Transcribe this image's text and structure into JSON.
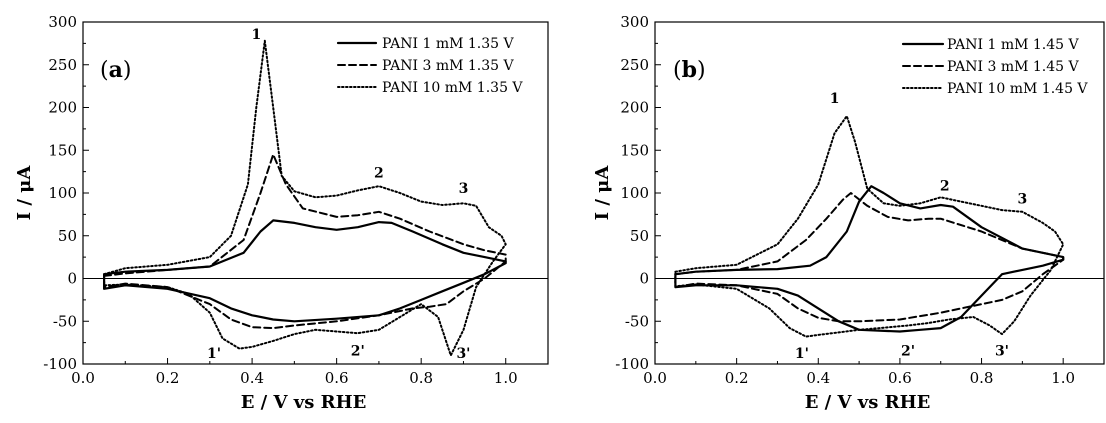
{
  "chart_data": [
    {
      "type": "line",
      "panel_label": "a",
      "xlabel": "E / V vs RHE",
      "ylabel": "I / μA",
      "xlim": [
        0.0,
        1.1
      ],
      "ylim": [
        -100,
        300
      ],
      "xticks": [
        0.0,
        0.2,
        0.4,
        0.6,
        0.8,
        1.0
      ],
      "yticks": [
        -100,
        -50,
        0,
        50,
        100,
        150,
        200,
        250,
        300
      ],
      "xtick_labels": [
        "0.0",
        "0.2",
        "0.4",
        "0.6",
        "0.8",
        "1.0"
      ],
      "ytick_labels": [
        "-100",
        "-50",
        "0",
        "50",
        "100",
        "150",
        "200",
        "250",
        "300"
      ],
      "zero_line": true,
      "grid": false,
      "legend_position": "top-right",
      "series": [
        {
          "name": "PANI 1 mM 1.35 V",
          "style": "solid",
          "points": [
            [
              0.05,
              5
            ],
            [
              0.1,
              8
            ],
            [
              0.2,
              10
            ],
            [
              0.3,
              14
            ],
            [
              0.38,
              30
            ],
            [
              0.42,
              55
            ],
            [
              0.45,
              68
            ],
            [
              0.5,
              65
            ],
            [
              0.55,
              60
            ],
            [
              0.6,
              57
            ],
            [
              0.65,
              60
            ],
            [
              0.7,
              66
            ],
            [
              0.73,
              65
            ],
            [
              0.78,
              55
            ],
            [
              0.85,
              40
            ],
            [
              0.9,
              30
            ],
            [
              0.95,
              25
            ],
            [
              1.0,
              20
            ],
            [
              1.0,
              18
            ],
            [
              0.95,
              5
            ],
            [
              0.9,
              -5
            ],
            [
              0.85,
              -15
            ],
            [
              0.8,
              -25
            ],
            [
              0.75,
              -35
            ],
            [
              0.7,
              -43
            ],
            [
              0.6,
              -47
            ],
            [
              0.5,
              -50
            ],
            [
              0.45,
              -48
            ],
            [
              0.4,
              -43
            ],
            [
              0.35,
              -35
            ],
            [
              0.3,
              -23
            ],
            [
              0.2,
              -12
            ],
            [
              0.1,
              -8
            ],
            [
              0.05,
              -12
            ],
            [
              0.05,
              5
            ]
          ]
        },
        {
          "name": "PANI 3 mM 1.35 V",
          "style": "dashed",
          "points": [
            [
              0.05,
              3
            ],
            [
              0.1,
              6
            ],
            [
              0.2,
              10
            ],
            [
              0.3,
              14
            ],
            [
              0.38,
              45
            ],
            [
              0.42,
              100
            ],
            [
              0.45,
              145
            ],
            [
              0.48,
              110
            ],
            [
              0.52,
              82
            ],
            [
              0.6,
              72
            ],
            [
              0.65,
              74
            ],
            [
              0.7,
              78
            ],
            [
              0.75,
              70
            ],
            [
              0.82,
              55
            ],
            [
              0.9,
              40
            ],
            [
              0.95,
              33
            ],
            [
              1.0,
              28
            ],
            [
              1.0,
              20
            ],
            [
              0.95,
              0
            ],
            [
              0.9,
              -15
            ],
            [
              0.86,
              -30
            ],
            [
              0.82,
              -33
            ],
            [
              0.78,
              -35
            ],
            [
              0.7,
              -43
            ],
            [
              0.6,
              -50
            ],
            [
              0.5,
              -55
            ],
            [
              0.45,
              -58
            ],
            [
              0.4,
              -57
            ],
            [
              0.35,
              -48
            ],
            [
              0.3,
              -30
            ],
            [
              0.2,
              -10
            ],
            [
              0.1,
              -6
            ],
            [
              0.05,
              -10
            ],
            [
              0.05,
              3
            ]
          ]
        },
        {
          "name": "PANI 10 mM 1.35 V",
          "style": "dotted",
          "points": [
            [
              0.05,
              5
            ],
            [
              0.1,
              12
            ],
            [
              0.2,
              16
            ],
            [
              0.3,
              25
            ],
            [
              0.35,
              50
            ],
            [
              0.39,
              110
            ],
            [
              0.41,
              200
            ],
            [
              0.43,
              278
            ],
            [
              0.45,
              200
            ],
            [
              0.47,
              120
            ],
            [
              0.5,
              102
            ],
            [
              0.55,
              95
            ],
            [
              0.6,
              97
            ],
            [
              0.65,
              103
            ],
            [
              0.7,
              108
            ],
            [
              0.75,
              100
            ],
            [
              0.8,
              90
            ],
            [
              0.85,
              86
            ],
            [
              0.9,
              88
            ],
            [
              0.93,
              85
            ],
            [
              0.96,
              60
            ],
            [
              0.99,
              50
            ],
            [
              1.0,
              40
            ],
            [
              0.97,
              20
            ],
            [
              0.93,
              -10
            ],
            [
              0.9,
              -60
            ],
            [
              0.87,
              -90
            ],
            [
              0.84,
              -45
            ],
            [
              0.8,
              -30
            ],
            [
              0.75,
              -45
            ],
            [
              0.7,
              -60
            ],
            [
              0.65,
              -64
            ],
            [
              0.6,
              -62
            ],
            [
              0.55,
              -60
            ],
            [
              0.5,
              -65
            ],
            [
              0.45,
              -73
            ],
            [
              0.4,
              -80
            ],
            [
              0.37,
              -82
            ],
            [
              0.33,
              -70
            ],
            [
              0.3,
              -40
            ],
            [
              0.25,
              -18
            ],
            [
              0.2,
              -10
            ],
            [
              0.1,
              -7
            ],
            [
              0.05,
              -8
            ],
            [
              0.05,
              5
            ]
          ]
        }
      ],
      "annotations": [
        {
          "text": "1",
          "x": 0.41,
          "y": 280
        },
        {
          "text": "2",
          "x": 0.7,
          "y": 118
        },
        {
          "text": "3",
          "x": 0.9,
          "y": 100
        },
        {
          "text": "1'",
          "x": 0.31,
          "y": -93
        },
        {
          "text": "2'",
          "x": 0.65,
          "y": -90
        },
        {
          "text": "3'",
          "x": 0.9,
          "y": -93
        }
      ]
    },
    {
      "type": "line",
      "panel_label": "b",
      "xlabel": "E / V vs RHE",
      "ylabel": "I / μA",
      "xlim": [
        0.0,
        1.1
      ],
      "ylim": [
        -100,
        300
      ],
      "xticks": [
        0.0,
        0.2,
        0.4,
        0.6,
        0.8,
        1.0
      ],
      "yticks": [
        -100,
        -50,
        0,
        50,
        100,
        150,
        200,
        250,
        300
      ],
      "xtick_labels": [
        "0.0",
        "0.2",
        "0.4",
        "0.6",
        "0.8",
        "1.0"
      ],
      "ytick_labels": [
        "-100",
        "-50",
        "0",
        "50",
        "100",
        "150",
        "200",
        "250",
        "300"
      ],
      "zero_line": true,
      "grid": false,
      "legend_position": "top-right",
      "series": [
        {
          "name": "PANI 1 mM 1.45 V",
          "style": "solid",
          "points": [
            [
              0.05,
              5
            ],
            [
              0.1,
              8
            ],
            [
              0.2,
              10
            ],
            [
              0.3,
              11
            ],
            [
              0.38,
              15
            ],
            [
              0.42,
              25
            ],
            [
              0.47,
              55
            ],
            [
              0.5,
              90
            ],
            [
              0.53,
              108
            ],
            [
              0.56,
              100
            ],
            [
              0.6,
              88
            ],
            [
              0.65,
              82
            ],
            [
              0.7,
              86
            ],
            [
              0.73,
              84
            ],
            [
              0.8,
              60
            ],
            [
              0.9,
              35
            ],
            [
              0.95,
              30
            ],
            [
              1.0,
              25
            ],
            [
              1.0,
              22
            ],
            [
              0.95,
              15
            ],
            [
              0.9,
              10
            ],
            [
              0.85,
              5
            ],
            [
              0.8,
              -20
            ],
            [
              0.75,
              -45
            ],
            [
              0.7,
              -58
            ],
            [
              0.65,
              -60
            ],
            [
              0.6,
              -62
            ],
            [
              0.5,
              -60
            ],
            [
              0.45,
              -50
            ],
            [
              0.4,
              -35
            ],
            [
              0.35,
              -20
            ],
            [
              0.3,
              -12
            ],
            [
              0.2,
              -8
            ],
            [
              0.1,
              -8
            ],
            [
              0.05,
              -10
            ],
            [
              0.05,
              5
            ]
          ]
        },
        {
          "name": "PANI 3 mM 1.45 V",
          "style": "dashed",
          "points": [
            [
              0.05,
              5
            ],
            [
              0.1,
              8
            ],
            [
              0.2,
              10
            ],
            [
              0.3,
              20
            ],
            [
              0.37,
              45
            ],
            [
              0.42,
              70
            ],
            [
              0.46,
              92
            ],
            [
              0.48,
              100
            ],
            [
              0.52,
              85
            ],
            [
              0.57,
              72
            ],
            [
              0.62,
              68
            ],
            [
              0.67,
              70
            ],
            [
              0.7,
              70
            ],
            [
              0.8,
              55
            ],
            [
              0.9,
              35
            ],
            [
              0.95,
              30
            ],
            [
              1.0,
              25
            ],
            [
              1.0,
              22
            ],
            [
              0.95,
              5
            ],
            [
              0.9,
              -15
            ],
            [
              0.85,
              -25
            ],
            [
              0.75,
              -35
            ],
            [
              0.7,
              -40
            ],
            [
              0.6,
              -48
            ],
            [
              0.5,
              -50
            ],
            [
              0.45,
              -50
            ],
            [
              0.4,
              -46
            ],
            [
              0.35,
              -35
            ],
            [
              0.3,
              -18
            ],
            [
              0.2,
              -8
            ],
            [
              0.1,
              -6
            ],
            [
              0.05,
              -10
            ],
            [
              0.05,
              5
            ]
          ]
        },
        {
          "name": "PANI 10 mM 1.45 V",
          "style": "dotted",
          "points": [
            [
              0.05,
              8
            ],
            [
              0.1,
              12
            ],
            [
              0.2,
              16
            ],
            [
              0.3,
              40
            ],
            [
              0.35,
              70
            ],
            [
              0.4,
              110
            ],
            [
              0.44,
              170
            ],
            [
              0.47,
              190
            ],
            [
              0.49,
              160
            ],
            [
              0.52,
              105
            ],
            [
              0.56,
              88
            ],
            [
              0.6,
              85
            ],
            [
              0.65,
              88
            ],
            [
              0.7,
              95
            ],
            [
              0.75,
              90
            ],
            [
              0.8,
              85
            ],
            [
              0.85,
              80
            ],
            [
              0.9,
              78
            ],
            [
              0.95,
              65
            ],
            [
              0.98,
              55
            ],
            [
              1.0,
              40
            ],
            [
              0.97,
              10
            ],
            [
              0.92,
              -20
            ],
            [
              0.88,
              -50
            ],
            [
              0.85,
              -65
            ],
            [
              0.82,
              -55
            ],
            [
              0.78,
              -45
            ],
            [
              0.72,
              -48
            ],
            [
              0.67,
              -52
            ],
            [
              0.62,
              -55
            ],
            [
              0.55,
              -58
            ],
            [
              0.5,
              -60
            ],
            [
              0.45,
              -63
            ],
            [
              0.4,
              -66
            ],
            [
              0.37,
              -68
            ],
            [
              0.33,
              -58
            ],
            [
              0.28,
              -35
            ],
            [
              0.2,
              -12
            ],
            [
              0.1,
              -7
            ],
            [
              0.05,
              -9
            ],
            [
              0.05,
              8
            ]
          ]
        }
      ],
      "annotations": [
        {
          "text": "1",
          "x": 0.44,
          "y": 205
        },
        {
          "text": "2",
          "x": 0.71,
          "y": 103
        },
        {
          "text": "3",
          "x": 0.9,
          "y": 88
        },
        {
          "text": "1'",
          "x": 0.36,
          "y": -93
        },
        {
          "text": "2'",
          "x": 0.62,
          "y": -90
        },
        {
          "text": "3'",
          "x": 0.85,
          "y": -90
        }
      ]
    }
  ]
}
